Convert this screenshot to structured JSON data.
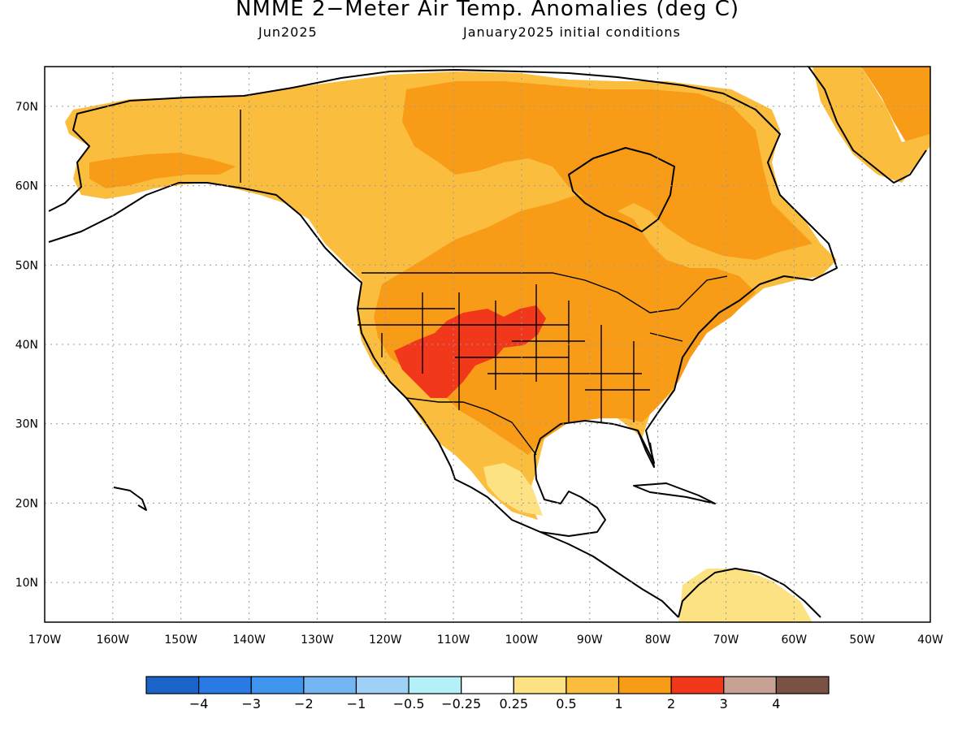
{
  "title": "NMME 2−Meter Air Temp. Anomalies (deg C)",
  "subtitle_left": "Jun2025",
  "subtitle_right": "January2025 initial conditions",
  "map": {
    "lon_range": [
      -170,
      -40
    ],
    "lat_range": [
      5,
      75
    ],
    "x_ticks": [
      "170W",
      "160W",
      "150W",
      "140W",
      "130W",
      "120W",
      "110W",
      "100W",
      "90W",
      "80W",
      "70W",
      "60W",
      "50W",
      "40W"
    ],
    "y_ticks": [
      "10N",
      "20N",
      "30N",
      "40N",
      "50N",
      "60N",
      "70N"
    ]
  },
  "colorbar": {
    "colors": [
      "#1a63c8",
      "#2a7ae6",
      "#3f95ee",
      "#73b6f2",
      "#9ed1f5",
      "#b4f0f8",
      "#ffffff",
      "#fde283",
      "#fbbd3e",
      "#f89c18",
      "#f2381a",
      "#c8a195",
      "#7a5244"
    ],
    "labels": [
      "−4",
      "−3",
      "−2",
      "−1",
      "−0.5",
      "−0.25",
      "0.25",
      "0.5",
      "1",
      "2",
      "3",
      "4"
    ]
  },
  "anomaly_colors": {
    "light_yellow": "#fde283",
    "light_orange": "#fbbd3e",
    "orange": "#f89c18",
    "red": "#f2381a"
  }
}
